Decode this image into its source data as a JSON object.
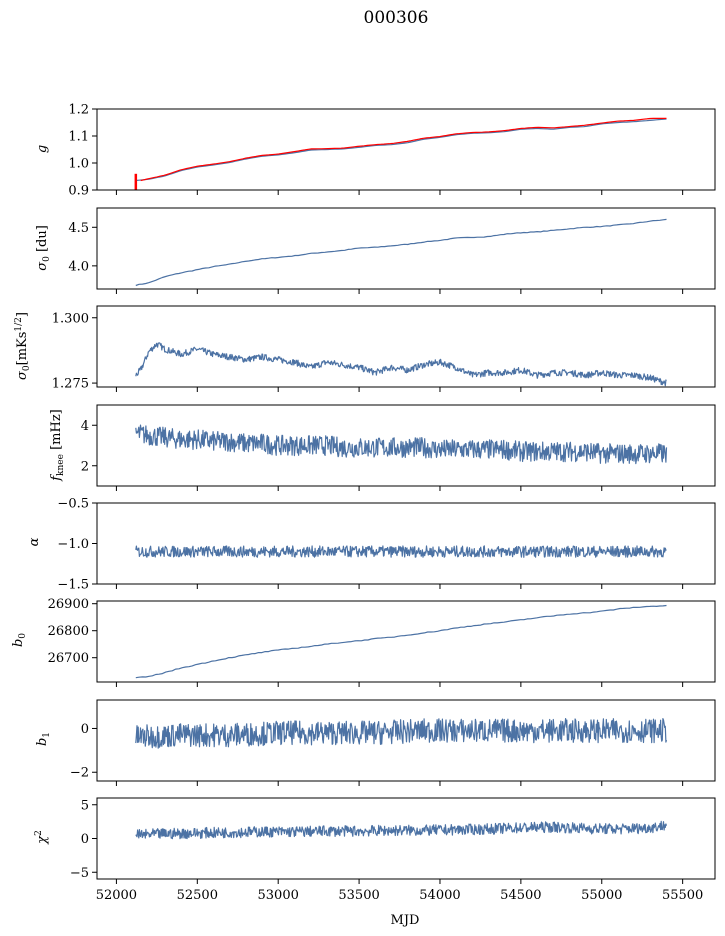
{
  "figure_title": "000306",
  "xlabel": "MJD",
  "colors": {
    "main": "#4c72a4",
    "fit": "#ff0000"
  },
  "chart_data": [
    {
      "type": "line",
      "ylabel": "g",
      "ylim": [
        0.9,
        1.2
      ],
      "yticks": [
        0.9,
        1.0,
        1.1,
        1.2
      ],
      "ytick_labels": [
        "0.9",
        "1.0",
        "1.1",
        "1.2"
      ],
      "series": [
        {
          "color": "#4c72a4",
          "x": [
            52120,
            52200,
            52300,
            52400,
            52500,
            52600,
            52700,
            52800,
            52900,
            53000,
            53100,
            53200,
            53300,
            53400,
            53500,
            53600,
            53700,
            53800,
            53900,
            54000,
            54100,
            54200,
            54300,
            54400,
            54500,
            54600,
            54700,
            54800,
            54900,
            55000,
            55100,
            55200,
            55300,
            55400
          ],
          "y": [
            0.935,
            0.94,
            0.952,
            0.972,
            0.985,
            0.993,
            1.002,
            1.015,
            1.025,
            1.03,
            1.038,
            1.048,
            1.05,
            1.052,
            1.058,
            1.065,
            1.068,
            1.075,
            1.088,
            1.095,
            1.105,
            1.11,
            1.112,
            1.116,
            1.125,
            1.128,
            1.125,
            1.132,
            1.135,
            1.145,
            1.15,
            1.153,
            1.158,
            1.163
          ]
        },
        {
          "color": "#ff0000",
          "x": [
            52150,
            52200,
            52300,
            52400,
            52500,
            52600,
            52700,
            52800,
            52900,
            53000,
            53100,
            53200,
            53300,
            53400,
            53500,
            53600,
            53700,
            53800,
            53900,
            54000,
            54100,
            54200,
            54300,
            54400,
            54500,
            54600,
            54700,
            54800,
            54900,
            55000,
            55100,
            55200,
            55300,
            55400
          ],
          "y": [
            0.935,
            0.942,
            0.955,
            0.975,
            0.988,
            0.996,
            1.005,
            1.018,
            1.028,
            1.033,
            1.042,
            1.052,
            1.053,
            1.055,
            1.062,
            1.068,
            1.072,
            1.08,
            1.092,
            1.098,
            1.108,
            1.113,
            1.115,
            1.12,
            1.128,
            1.132,
            1.13,
            1.135,
            1.14,
            1.148,
            1.155,
            1.158,
            1.165,
            1.165
          ]
        }
      ]
    },
    {
      "type": "line",
      "ylabel": "σ0 [du]",
      "ylim": [
        3.7,
        4.75
      ],
      "yticks": [
        4.0,
        4.5
      ],
      "ytick_labels": [
        "4.0",
        "4.5"
      ],
      "series": [
        {
          "color": "#4c72a4",
          "x": [
            52120,
            52200,
            52300,
            52400,
            52500,
            52600,
            52700,
            52800,
            52900,
            53000,
            53100,
            53200,
            53300,
            53400,
            53500,
            53600,
            53700,
            53800,
            53900,
            54000,
            54100,
            54200,
            54300,
            54400,
            54500,
            54600,
            54700,
            54800,
            54900,
            55000,
            55100,
            55200,
            55300,
            55400
          ],
          "y": [
            3.75,
            3.78,
            3.86,
            3.91,
            3.95,
            3.99,
            4.02,
            4.06,
            4.09,
            4.11,
            4.13,
            4.16,
            4.18,
            4.2,
            4.23,
            4.24,
            4.26,
            4.28,
            4.31,
            4.33,
            4.36,
            4.37,
            4.38,
            4.41,
            4.43,
            4.44,
            4.46,
            4.48,
            4.5,
            4.51,
            4.53,
            4.55,
            4.58,
            4.6
          ]
        }
      ]
    },
    {
      "type": "line",
      "ylabel": "σ0[mKs1/2]",
      "ylim": [
        1.2735,
        1.3045
      ],
      "yticks": [
        1.275,
        1.3
      ],
      "ytick_labels": [
        "1.275",
        "1.300"
      ],
      "series": [
        {
          "color": "#4c72a4",
          "x": [
            52120,
            52150,
            52200,
            52250,
            52300,
            52400,
            52500,
            52600,
            52700,
            52800,
            52900,
            53000,
            53100,
            53200,
            53300,
            53400,
            53500,
            53600,
            53700,
            53800,
            53900,
            54000,
            54100,
            54200,
            54300,
            54400,
            54500,
            54600,
            54700,
            54800,
            54900,
            55000,
            55100,
            55200,
            55300,
            55400
          ],
          "y": [
            1.278,
            1.28,
            1.287,
            1.29,
            1.288,
            1.286,
            1.288,
            1.286,
            1.285,
            1.284,
            1.285,
            1.284,
            1.283,
            1.281,
            1.283,
            1.282,
            1.281,
            1.279,
            1.281,
            1.28,
            1.282,
            1.283,
            1.281,
            1.278,
            1.279,
            1.279,
            1.28,
            1.278,
            1.279,
            1.279,
            1.278,
            1.279,
            1.278,
            1.278,
            1.277,
            1.275
          ]
        }
      ]
    },
    {
      "type": "line",
      "ylabel": "fknee [mHz]",
      "ylim": [
        1.0,
        5.0
      ],
      "yticks": [
        2,
        4
      ],
      "ytick_labels": [
        "2",
        "4"
      ],
      "series": [
        {
          "color": "#4c72a4",
          "x": [
            52120,
            52200,
            52300,
            52400,
            52500,
            52600,
            52700,
            52800,
            52900,
            53000,
            53100,
            53200,
            53300,
            53400,
            53500,
            53600,
            53700,
            53800,
            53900,
            54000,
            54100,
            54200,
            54300,
            54400,
            54500,
            54600,
            54700,
            54800,
            54900,
            55000,
            55100,
            55200,
            55300,
            55400
          ],
          "y": [
            3.6,
            3.5,
            3.4,
            3.3,
            3.3,
            3.2,
            3.2,
            3.1,
            3.1,
            3.0,
            3.0,
            3.0,
            3.0,
            2.9,
            2.9,
            2.9,
            2.9,
            2.9,
            2.9,
            2.8,
            2.8,
            2.8,
            2.8,
            2.8,
            2.7,
            2.7,
            2.7,
            2.7,
            2.7,
            2.6,
            2.6,
            2.6,
            2.6,
            2.6
          ]
        }
      ]
    },
    {
      "type": "line",
      "ylabel": "α",
      "ylim": [
        -1.5,
        -0.5
      ],
      "yticks": [
        -1.5,
        -1.0,
        -0.5
      ],
      "ytick_labels": [
        "−1.5",
        "−1.0",
        "−0.5"
      ],
      "series": [
        {
          "color": "#4c72a4",
          "x": [
            52120,
            52400,
            52700,
            53000,
            53300,
            53600,
            53900,
            54200,
            54500,
            54800,
            55100,
            55400
          ],
          "y": [
            -1.1,
            -1.1,
            -1.1,
            -1.1,
            -1.1,
            -1.1,
            -1.1,
            -1.1,
            -1.1,
            -1.1,
            -1.1,
            -1.1
          ]
        }
      ]
    },
    {
      "type": "line",
      "ylabel": "b0",
      "ylim": [
        26610,
        26910
      ],
      "yticks": [
        26700,
        26800,
        26900
      ],
      "ytick_labels": [
        "26700",
        "26800",
        "26900"
      ],
      "series": [
        {
          "color": "#4c72a4",
          "x": [
            52120,
            52200,
            52300,
            52400,
            52500,
            52600,
            52700,
            52800,
            52900,
            53000,
            53100,
            53200,
            53300,
            53400,
            53500,
            53600,
            53700,
            53800,
            53900,
            54000,
            54100,
            54200,
            54300,
            54400,
            54500,
            54600,
            54700,
            54800,
            54900,
            55000,
            55100,
            55200,
            55300,
            55400
          ],
          "y": [
            26625,
            26630,
            26645,
            26662,
            26675,
            26688,
            26700,
            26710,
            26720,
            26728,
            26735,
            26742,
            26750,
            26757,
            26763,
            26770,
            26776,
            26784,
            26792,
            26800,
            26810,
            26818,
            26826,
            26832,
            26840,
            26848,
            26855,
            26862,
            26866,
            26872,
            26880,
            26886,
            26890,
            26893
          ]
        }
      ]
    },
    {
      "type": "line",
      "ylabel": "b1",
      "ylim": [
        -2.4,
        1.3
      ],
      "yticks": [
        -2,
        0
      ],
      "ytick_labels": [
        "−2",
        "0"
      ],
      "series": [
        {
          "color": "#4c72a4",
          "x": [
            52120,
            52400,
            52700,
            53000,
            53300,
            53600,
            53900,
            54200,
            54500,
            54800,
            55100,
            55400
          ],
          "y": [
            -0.4,
            -0.3,
            -0.3,
            -0.2,
            -0.2,
            -0.2,
            -0.1,
            -0.1,
            -0.1,
            -0.1,
            -0.1,
            -0.1
          ]
        }
      ]
    },
    {
      "type": "line",
      "ylabel": "χ2",
      "ylim": [
        -6,
        6
      ],
      "yticks": [
        -5,
        0,
        5
      ],
      "ytick_labels": [
        "−5",
        "0",
        "5"
      ],
      "series": [
        {
          "color": "#4c72a4",
          "x": [
            52120,
            52300,
            52500,
            52700,
            52900,
            53100,
            53300,
            53500,
            53700,
            53900,
            54100,
            54300,
            54500,
            54700,
            54900,
            55100,
            55300,
            55400
          ],
          "y": [
            0.5,
            0.7,
            0.8,
            0.9,
            1.0,
            1.0,
            1.1,
            1.1,
            1.2,
            1.2,
            1.3,
            1.4,
            1.6,
            1.7,
            1.5,
            1.4,
            1.6,
            2.0
          ]
        }
      ]
    }
  ],
  "x_axis": {
    "xlim": [
      51880,
      55700
    ],
    "xticks": [
      52000,
      52500,
      53000,
      53500,
      54000,
      54500,
      55000,
      55500
    ],
    "xtick_labels": [
      "52000",
      "52500",
      "53000",
      "53500",
      "54000",
      "54500",
      "55000",
      "55500"
    ]
  }
}
